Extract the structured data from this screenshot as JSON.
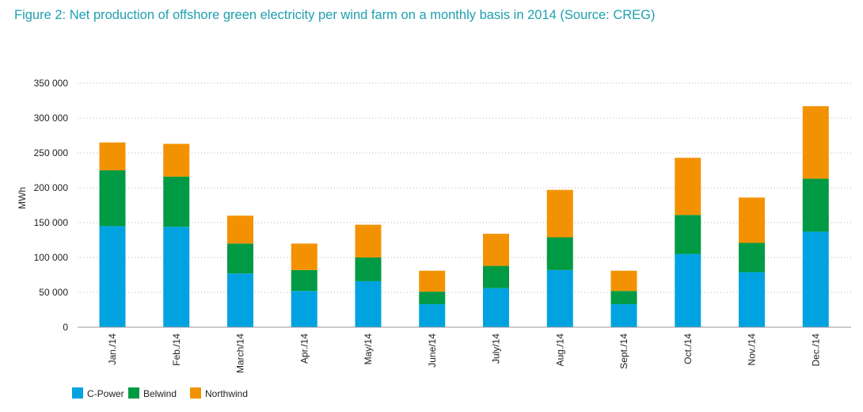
{
  "chart_data": {
    "type": "bar",
    "stacked": true,
    "title": "Figure 2: Net production of offshore green electricity per wind farm on a monthly basis in 2014 (Source: CREG)",
    "xlabel": "",
    "ylabel": "MWh",
    "ylim": [
      0,
      350000
    ],
    "yticks": [
      0,
      50000,
      100000,
      150000,
      200000,
      250000,
      300000,
      350000
    ],
    "ytick_labels": [
      "0",
      "50 000",
      "100 000",
      "150 000",
      "200 000",
      "250 000",
      "300 000",
      "350 000"
    ],
    "grid": "horizontal dotted",
    "legend_position": "bottom-left",
    "categories": [
      "Jan./14",
      "Feb./14",
      "March/14",
      "Apr./14",
      "May/14",
      "June/14",
      "July/14",
      "Aug./14",
      "Sept./14",
      "Oct./14",
      "Nov./14",
      "Dec./14"
    ],
    "series": [
      {
        "name": "C-Power",
        "color": "#00a3e0",
        "values": [
          145000,
          144000,
          77000,
          52000,
          66000,
          33000,
          56000,
          82000,
          33000,
          105000,
          79000,
          137000
        ]
      },
      {
        "name": "Belwind",
        "color": "#009a44",
        "values": [
          80000,
          72000,
          43000,
          30000,
          34000,
          18000,
          32000,
          47000,
          19000,
          56000,
          42000,
          76000
        ]
      },
      {
        "name": "Northwind",
        "color": "#f39200",
        "values": [
          40000,
          47000,
          40000,
          38000,
          47000,
          30000,
          46000,
          68000,
          29000,
          82000,
          65000,
          104000
        ]
      }
    ]
  }
}
